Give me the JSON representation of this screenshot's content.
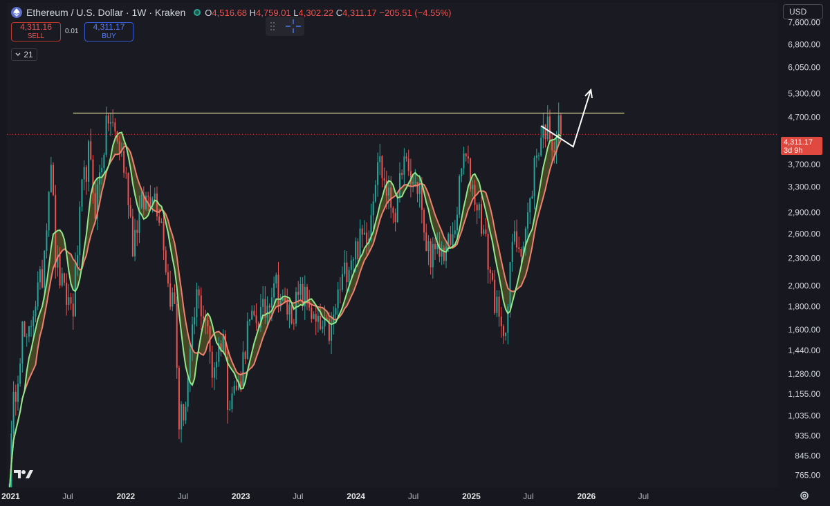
{
  "header": {
    "symbol_title": "Ethereum / U.S. Dollar · 1W · Kraken",
    "open_label": "O",
    "open": "4,516.68",
    "high_label": "H",
    "high": "4,759.01",
    "low_label": "L",
    "low": "4,302.22",
    "close_label": "C",
    "close": "4,311.17",
    "change": "−205.51 (−4.55%)"
  },
  "trade": {
    "sell_price": "4,311.16",
    "sell_label": "SELL",
    "spread": "0.01",
    "buy_price": "4,311.17",
    "buy_label": "BUY"
  },
  "indicator_toggle": {
    "label": "21"
  },
  "currency": "USD",
  "price_tag": {
    "price": "4,311.17",
    "countdown": "3d 9h"
  },
  "colors": {
    "background": "#17171f",
    "up": "#26a69a",
    "down": "#ef5350",
    "ma_fast": "#8fe88a",
    "ma_slow": "#f08070",
    "band_fill": "#6b6b2a",
    "resistance": "#c9c98a",
    "current_price": "#e0493f",
    "arrow": "#ffffff"
  },
  "chart_data": {
    "type": "candlestick",
    "timeframe": "1W",
    "y_scale": "log",
    "ylim": [
      720,
      8400
    ],
    "xlim": [
      "2020-12-20",
      "2027-09-01"
    ],
    "x_ticks": [
      {
        "date": "2021-01-01",
        "label": "2021",
        "bold": true
      },
      {
        "date": "2021-07-01",
        "label": "Jul",
        "bold": false
      },
      {
        "date": "2022-01-01",
        "label": "2022",
        "bold": true
      },
      {
        "date": "2022-07-01",
        "label": "Jul",
        "bold": false
      },
      {
        "date": "2023-01-01",
        "label": "2023",
        "bold": true
      },
      {
        "date": "2023-07-01",
        "label": "Jul",
        "bold": false
      },
      {
        "date": "2024-01-01",
        "label": "2024",
        "bold": true
      },
      {
        "date": "2024-07-01",
        "label": "Jul",
        "bold": false
      },
      {
        "date": "2025-01-01",
        "label": "2025",
        "bold": true
      },
      {
        "date": "2025-07-01",
        "label": "Jul",
        "bold": false
      },
      {
        "date": "2026-01-01",
        "label": "2026",
        "bold": true
      },
      {
        "date": "2026-07-01",
        "label": "Jul",
        "bold": false
      }
    ],
    "y_ticks": [
      {
        "value": 7600,
        "label": "7,600.00"
      },
      {
        "value": 6800,
        "label": "6,800.00"
      },
      {
        "value": 6050,
        "label": "6,050.00"
      },
      {
        "value": 5300,
        "label": "5,300.00"
      },
      {
        "value": 4700,
        "label": "4,700.00"
      },
      {
        "value": 3700,
        "label": "3,700.00"
      },
      {
        "value": 3300,
        "label": "3,300.00"
      },
      {
        "value": 2900,
        "label": "2,900.00"
      },
      {
        "value": 2600,
        "label": "2,600.00"
      },
      {
        "value": 2300,
        "label": "2,300.00"
      },
      {
        "value": 2000,
        "label": "2,000.00"
      },
      {
        "value": 1800,
        "label": "1,800.00"
      },
      {
        "value": 1600,
        "label": "1,600.00"
      },
      {
        "value": 1440,
        "label": "1,440.00"
      },
      {
        "value": 1280,
        "label": "1,280.00"
      },
      {
        "value": 1155,
        "label": "1,155.00"
      },
      {
        "value": 1035,
        "label": "1,035.00"
      },
      {
        "value": 935,
        "label": "935.00"
      },
      {
        "value": 845,
        "label": "845.00"
      },
      {
        "value": 765,
        "label": "765.00"
      }
    ],
    "close_keypoints": [
      [
        "2020-12-27",
        740
      ],
      [
        "2021-01-10",
        1090
      ],
      [
        "2021-02-07",
        1600
      ],
      [
        "2021-02-21",
        1450
      ],
      [
        "2021-03-14",
        1800
      ],
      [
        "2021-04-11",
        2100
      ],
      [
        "2021-05-09",
        3900
      ],
      [
        "2021-05-23",
        2300
      ],
      [
        "2021-06-20",
        1900
      ],
      [
        "2021-07-18",
        1800
      ],
      [
        "2021-08-15",
        3200
      ],
      [
        "2021-09-05",
        3900
      ],
      [
        "2021-09-26",
        3000
      ],
      [
        "2021-10-24",
        4100
      ],
      [
        "2021-11-07",
        4700
      ],
      [
        "2021-11-28",
        4300
      ],
      [
        "2021-12-19",
        3900
      ],
      [
        "2022-01-09",
        3200
      ],
      [
        "2022-01-23",
        2500
      ],
      [
        "2022-02-13",
        2900
      ],
      [
        "2022-03-27",
        3300
      ],
      [
        "2022-04-24",
        2800
      ],
      [
        "2022-05-15",
        2000
      ],
      [
        "2022-06-05",
        1800
      ],
      [
        "2022-06-19",
        1000
      ],
      [
        "2022-07-10",
        1100
      ],
      [
        "2022-08-14",
        1900
      ],
      [
        "2022-09-11",
        1700
      ],
      [
        "2022-10-02",
        1300
      ],
      [
        "2022-11-06",
        1580
      ],
      [
        "2022-11-20",
        1150
      ],
      [
        "2022-12-25",
        1200
      ],
      [
        "2023-01-22",
        1600
      ],
      [
        "2023-02-19",
        1700
      ],
      [
        "2023-03-19",
        1750
      ],
      [
        "2023-04-16",
        2100
      ],
      [
        "2023-05-14",
        1800
      ],
      [
        "2023-06-11",
        1750
      ],
      [
        "2023-07-09",
        1900
      ],
      [
        "2023-08-06",
        1850
      ],
      [
        "2023-08-20",
        1650
      ],
      [
        "2023-09-10",
        1600
      ],
      [
        "2023-10-15",
        1580
      ],
      [
        "2023-11-05",
        1900
      ],
      [
        "2023-12-10",
        2300
      ],
      [
        "2024-01-14",
        2500
      ],
      [
        "2024-02-11",
        2700
      ],
      [
        "2024-03-10",
        3900
      ],
      [
        "2024-04-14",
        3100
      ],
      [
        "2024-05-12",
        2900
      ],
      [
        "2024-05-26",
        3800
      ],
      [
        "2024-06-23",
        3400
      ],
      [
        "2024-07-21",
        3300
      ],
      [
        "2024-08-04",
        2500
      ],
      [
        "2024-09-08",
        2300
      ],
      [
        "2024-10-06",
        2400
      ],
      [
        "2024-11-03",
        2500
      ],
      [
        "2024-12-08",
        3900
      ],
      [
        "2025-01-05",
        3300
      ],
      [
        "2025-02-02",
        2800
      ],
      [
        "2025-03-09",
        2000
      ],
      [
        "2025-04-06",
        1550
      ],
      [
        "2025-04-27",
        1800
      ],
      [
        "2025-05-11",
        2500
      ],
      [
        "2025-06-15",
        2500
      ],
      [
        "2025-07-06",
        3000
      ],
      [
        "2025-07-20",
        3700
      ],
      [
        "2025-08-10",
        4300
      ],
      [
        "2025-08-24",
        4500
      ],
      [
        "2025-09-07",
        4400
      ],
      [
        "2025-09-21",
        4100
      ],
      [
        "2025-10-05",
        4500
      ],
      [
        "2025-10-12",
        4311
      ]
    ],
    "resistance_line": {
      "value": 4800,
      "from": "2021-07-18",
      "to": "2026-05-01"
    },
    "current_price_line": {
      "value": 4311.17
    },
    "projection_arrow": [
      [
        "2025-08-10",
        4500
      ],
      [
        "2025-11-20",
        4050
      ],
      [
        "2026-01-15",
        5400
      ]
    ],
    "moving_averages": [
      "ma_fast",
      "ma_slow"
    ]
  }
}
